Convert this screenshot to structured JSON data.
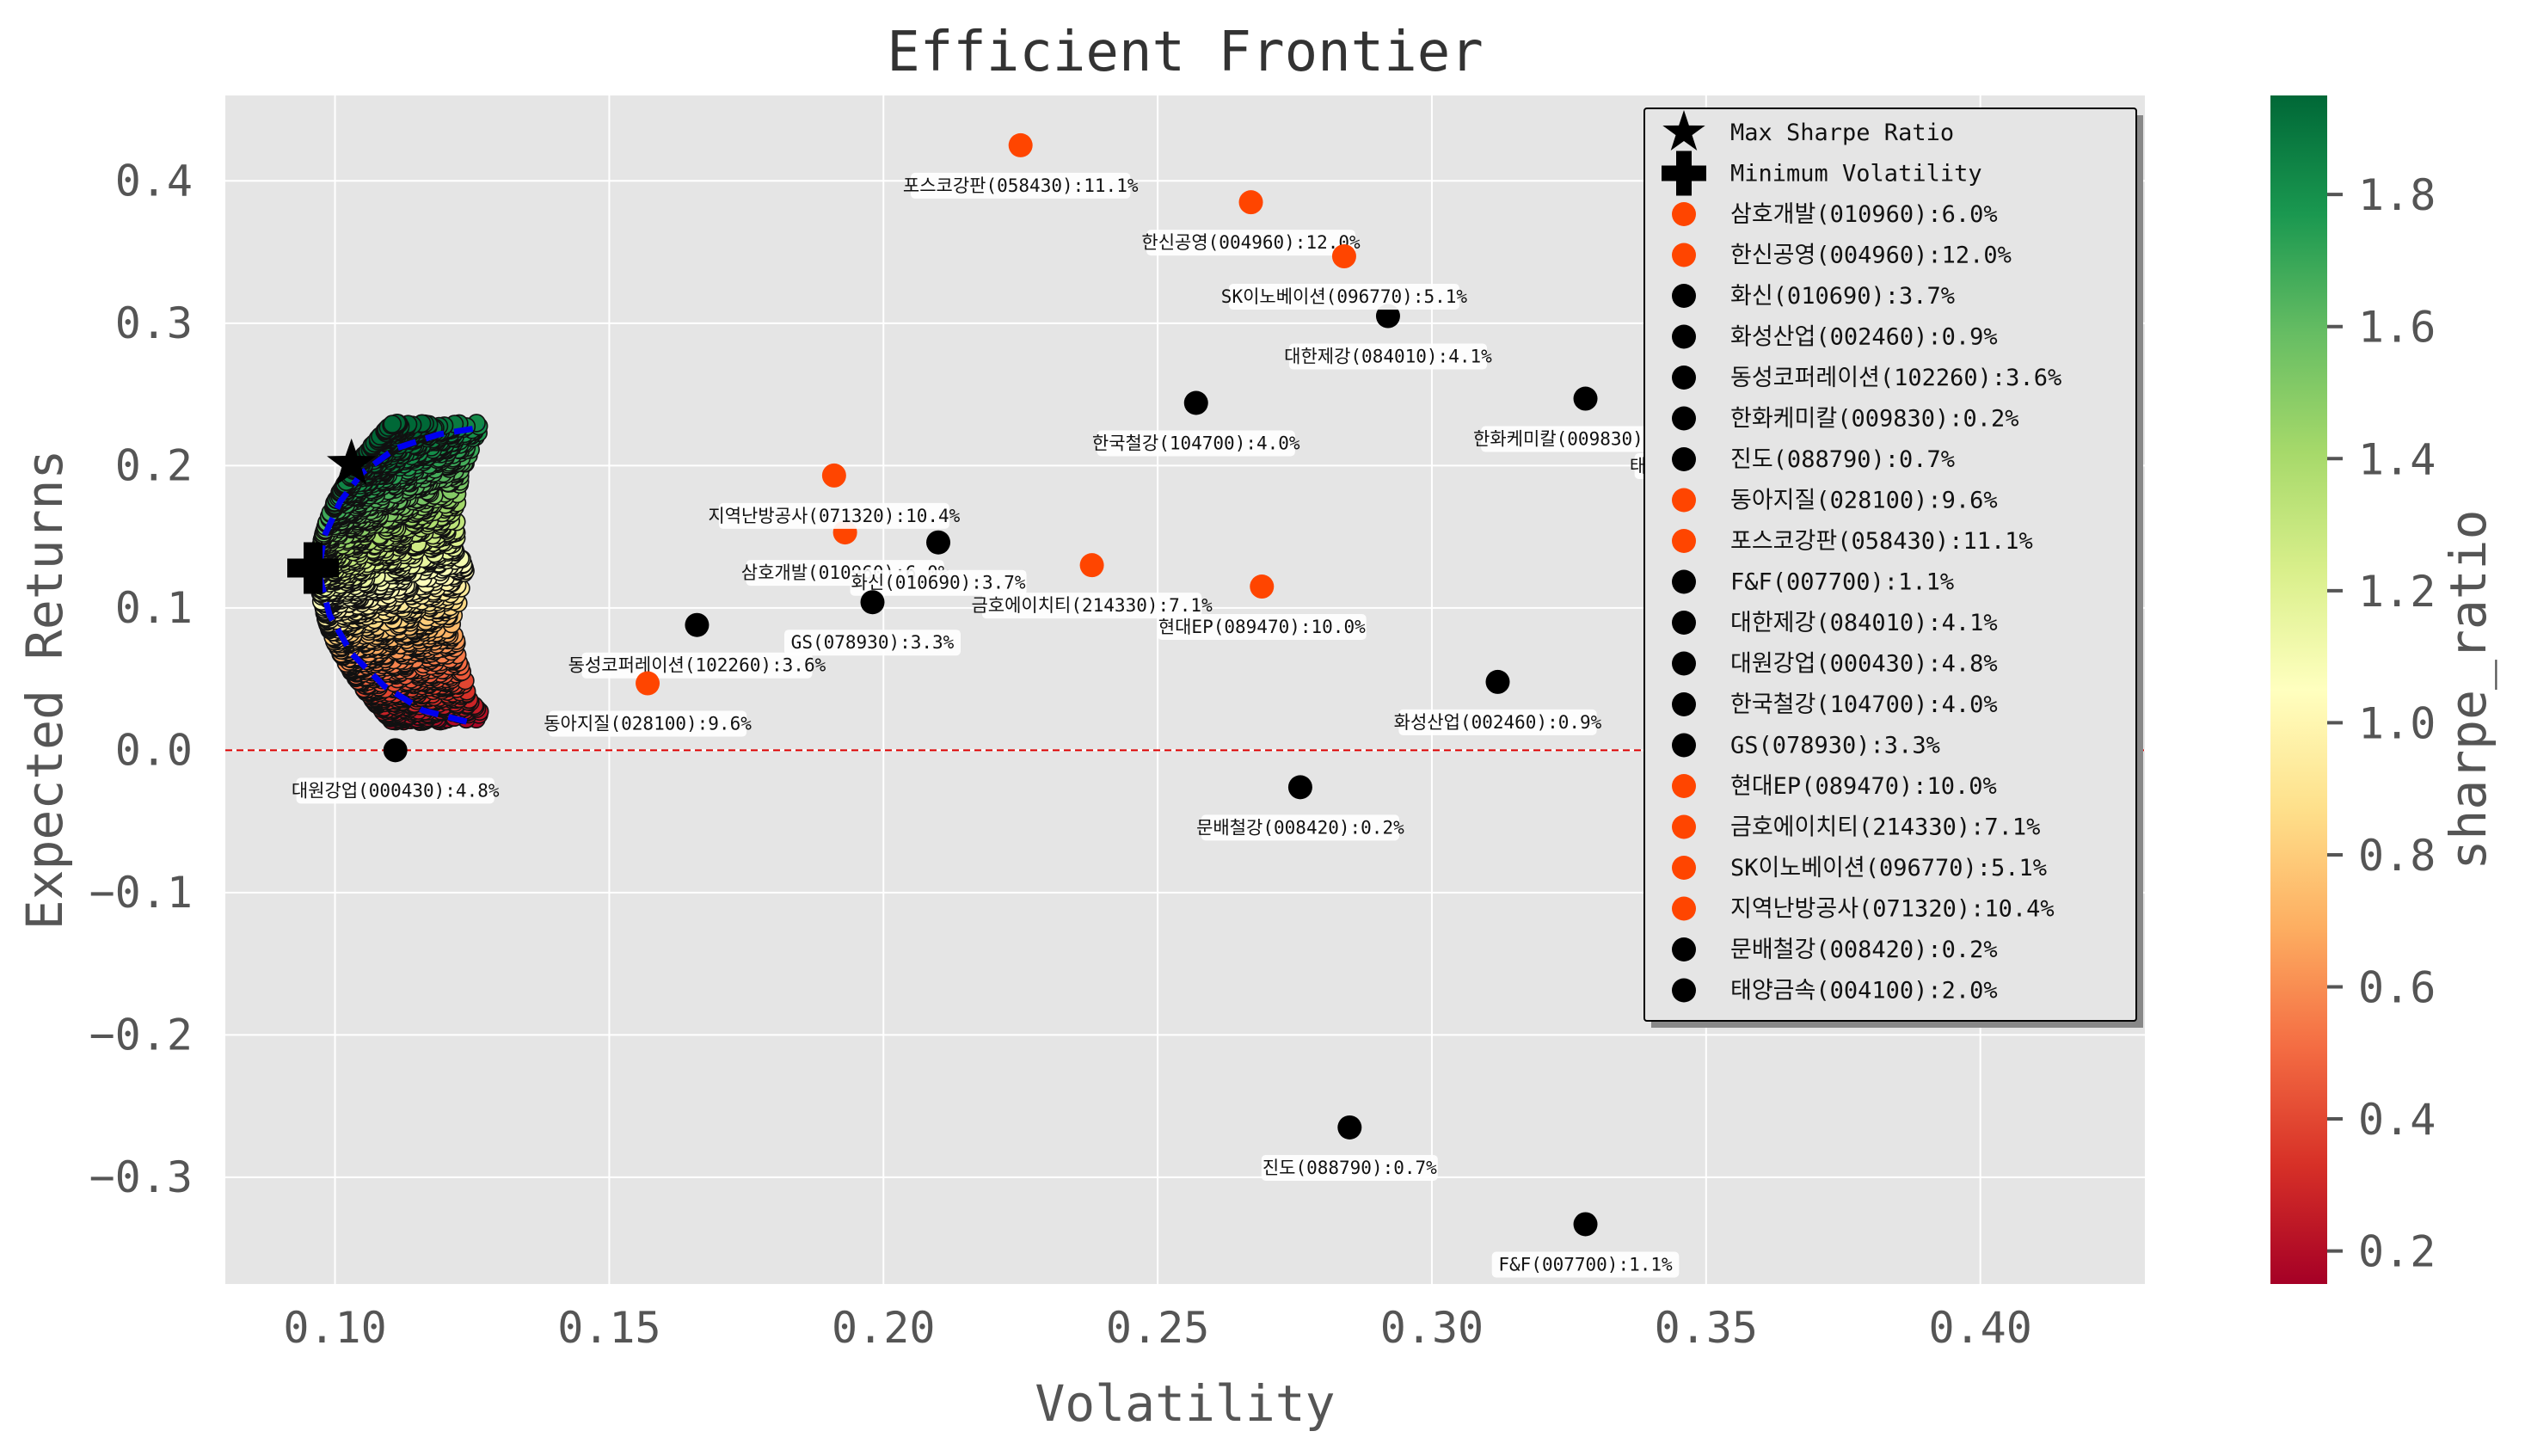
{
  "chart_data": {
    "type": "scatter",
    "title": "Efficient Frontier",
    "xlabel": "Volatility",
    "ylabel": "Expected Returns",
    "xlim": [
      0.08,
      0.43
    ],
    "ylim": [
      -0.375,
      0.46
    ],
    "xticks": [
      0.1,
      0.15,
      0.2,
      0.25,
      0.3,
      0.35,
      0.4
    ],
    "xtick_labels": [
      "0.10",
      "0.15",
      "0.20",
      "0.25",
      "0.30",
      "0.35",
      "0.40"
    ],
    "yticks": [
      -0.3,
      -0.2,
      -0.1,
      0.0,
      0.1,
      0.2,
      0.3,
      0.4
    ],
    "ytick_labels": [
      "−0.3",
      "−0.2",
      "−0.1",
      "0.0",
      "0.1",
      "0.2",
      "0.3",
      "0.4"
    ],
    "grid": true,
    "background": "#e5e5e5",
    "zero_line": {
      "y": 0.0,
      "color": "#dd0000",
      "style": "dashed"
    },
    "colorbar": {
      "label": "sharpe_ratio",
      "colormap": "RdYlGn",
      "range": [
        0.15,
        1.95
      ],
      "ticks": [
        0.2,
        0.4,
        0.6,
        0.8,
        1.0,
        1.2,
        1.4,
        1.6,
        1.8
      ],
      "tick_labels": [
        "0.2",
        "0.4",
        "0.6",
        "0.8",
        "1.0",
        "1.2",
        "1.4",
        "1.6",
        "1.8"
      ],
      "colors": [
        "#a50026",
        "#d73027",
        "#f46d43",
        "#fdae61",
        "#fee08b",
        "#ffffbf",
        "#d9ef8b",
        "#a6d96a",
        "#66bd63",
        "#1a9850",
        "#006837"
      ]
    },
    "simulated_portfolios": {
      "description_shown": "random portfolios colored by sharpe_ratio",
      "vol_range": [
        0.095,
        0.152
      ],
      "return_range": [
        0.02,
        0.23
      ]
    },
    "frontier_line": {
      "color": "#0000ee",
      "style": "dashed",
      "points": [
        [
          0.124,
          0.02
        ],
        [
          0.116,
          0.028
        ],
        [
          0.109,
          0.045
        ],
        [
          0.103,
          0.068
        ],
        [
          0.099,
          0.095
        ],
        [
          0.097,
          0.125
        ],
        [
          0.098,
          0.15
        ],
        [
          0.101,
          0.175
        ],
        [
          0.105,
          0.195
        ],
        [
          0.111,
          0.212
        ],
        [
          0.119,
          0.222
        ],
        [
          0.127,
          0.227
        ]
      ]
    },
    "max_sharpe": {
      "name": "Max Sharpe Ratio",
      "x": 0.103,
      "y": 0.201,
      "marker": "star"
    },
    "min_volatility": {
      "name": "Minimum Volatility",
      "x": 0.096,
      "y": 0.128,
      "marker": "plus"
    },
    "assets": [
      {
        "label": "삼호개발(010960):6.0%",
        "x": 0.193,
        "y": 0.153,
        "color": "#ff4500"
      },
      {
        "label": "한신공영(004960):12.0%",
        "x": 0.267,
        "y": 0.385,
        "color": "#ff4500"
      },
      {
        "label": "화신(010690):3.7%",
        "x": 0.21,
        "y": 0.146,
        "color": "#000000"
      },
      {
        "label": "화성산업(002460):0.9%",
        "x": 0.312,
        "y": 0.048,
        "color": "#000000"
      },
      {
        "label": "동성코퍼레이션(102260):3.6%",
        "x": 0.166,
        "y": 0.088,
        "color": "#000000"
      },
      {
        "label": "한화케미칼(009830):0.2%",
        "x": 0.328,
        "y": 0.247,
        "color": "#000000"
      },
      {
        "label": "진도(088790):0.7%",
        "x": 0.285,
        "y": -0.265,
        "color": "#000000"
      },
      {
        "label": "동아지질(028100):9.6%",
        "x": 0.157,
        "y": 0.047,
        "color": "#ff4500"
      },
      {
        "label": "포스코강판(058430):11.1%",
        "x": 0.225,
        "y": 0.425,
        "color": "#ff4500"
      },
      {
        "label": "F&F(007700):1.1%",
        "x": 0.328,
        "y": -0.333,
        "color": "#000000"
      },
      {
        "label": "대한제강(084010):4.1%",
        "x": 0.292,
        "y": 0.305,
        "color": "#000000"
      },
      {
        "label": "대원강업(000430):4.8%",
        "x": 0.111,
        "y": 0.0,
        "color": "#000000"
      },
      {
        "label": "한국철강(104700):4.0%",
        "x": 0.257,
        "y": 0.244,
        "color": "#000000"
      },
      {
        "label": "GS(078930):3.3%",
        "x": 0.198,
        "y": 0.104,
        "color": "#000000"
      },
      {
        "label": "현대EP(089470):10.0%",
        "x": 0.269,
        "y": 0.115,
        "color": "#ff4500"
      },
      {
        "label": "금호에이치티(214330):7.1%",
        "x": 0.238,
        "y": 0.13,
        "color": "#ff4500"
      },
      {
        "label": "SK이노베이션(096770):5.1%",
        "x": 0.284,
        "y": 0.347,
        "color": "#ff4500"
      },
      {
        "label": "지역난방공사(071320):10.4%",
        "x": 0.191,
        "y": 0.193,
        "color": "#ff4500"
      },
      {
        "label": "문배철강(008420):0.2%",
        "x": 0.276,
        "y": -0.026,
        "color": "#000000"
      },
      {
        "label": "태양금속(004100):2.0%",
        "x": 0.355,
        "y": 0.228,
        "color": "#000000"
      }
    ],
    "legend": {
      "placement": "upper-right",
      "entries": [
        "Max Sharpe Ratio",
        "Minimum Volatility",
        "삼호개발(010960):6.0%",
        "한신공영(004960):12.0%",
        "화신(010690):3.7%",
        "화성산업(002460):0.9%",
        "동성코퍼레이션(102260):3.6%",
        "한화케미칼(009830):0.2%",
        "진도(088790):0.7%",
        "동아지질(028100):9.6%",
        "포스코강판(058430):11.1%",
        "F&F(007700):1.1%",
        "대한제강(084010):4.1%",
        "대원강업(000430):4.8%",
        "한국철강(104700):4.0%",
        "GS(078930):3.3%",
        "현대EP(089470):10.0%",
        "금호에이치티(214330):7.1%",
        "SK이노베이션(096770):5.1%",
        "지역난방공사(071320):10.4%",
        "문배철강(008420):0.2%",
        "태양금속(004100):2.0%"
      ]
    }
  }
}
